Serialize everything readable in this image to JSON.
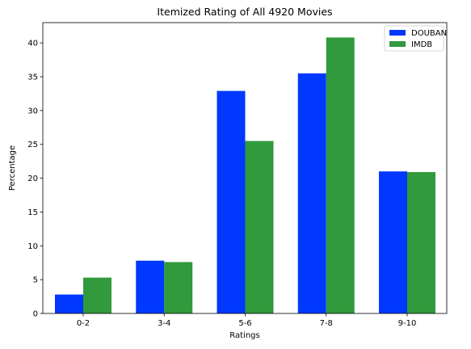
{
  "chart_data": {
    "type": "bar",
    "title": "Itemized Rating of All 4920 Movies",
    "xlabel": "Ratings",
    "ylabel": "Percentage",
    "categories": [
      "0-2",
      "3-4",
      "5-6",
      "7-8",
      "9-10"
    ],
    "series": [
      {
        "name": "DOUBAN",
        "color": "#0038ff",
        "values": [
          2.8,
          7.8,
          32.9,
          35.5,
          21.0
        ]
      },
      {
        "name": "IMDB",
        "color": "#319a3c",
        "values": [
          5.3,
          7.6,
          25.5,
          40.8,
          20.9
        ]
      }
    ],
    "ylim": [
      0,
      43
    ],
    "yticks": [
      0,
      5,
      10,
      15,
      20,
      25,
      30,
      35,
      40
    ],
    "grid": false,
    "legend": "top-right"
  }
}
